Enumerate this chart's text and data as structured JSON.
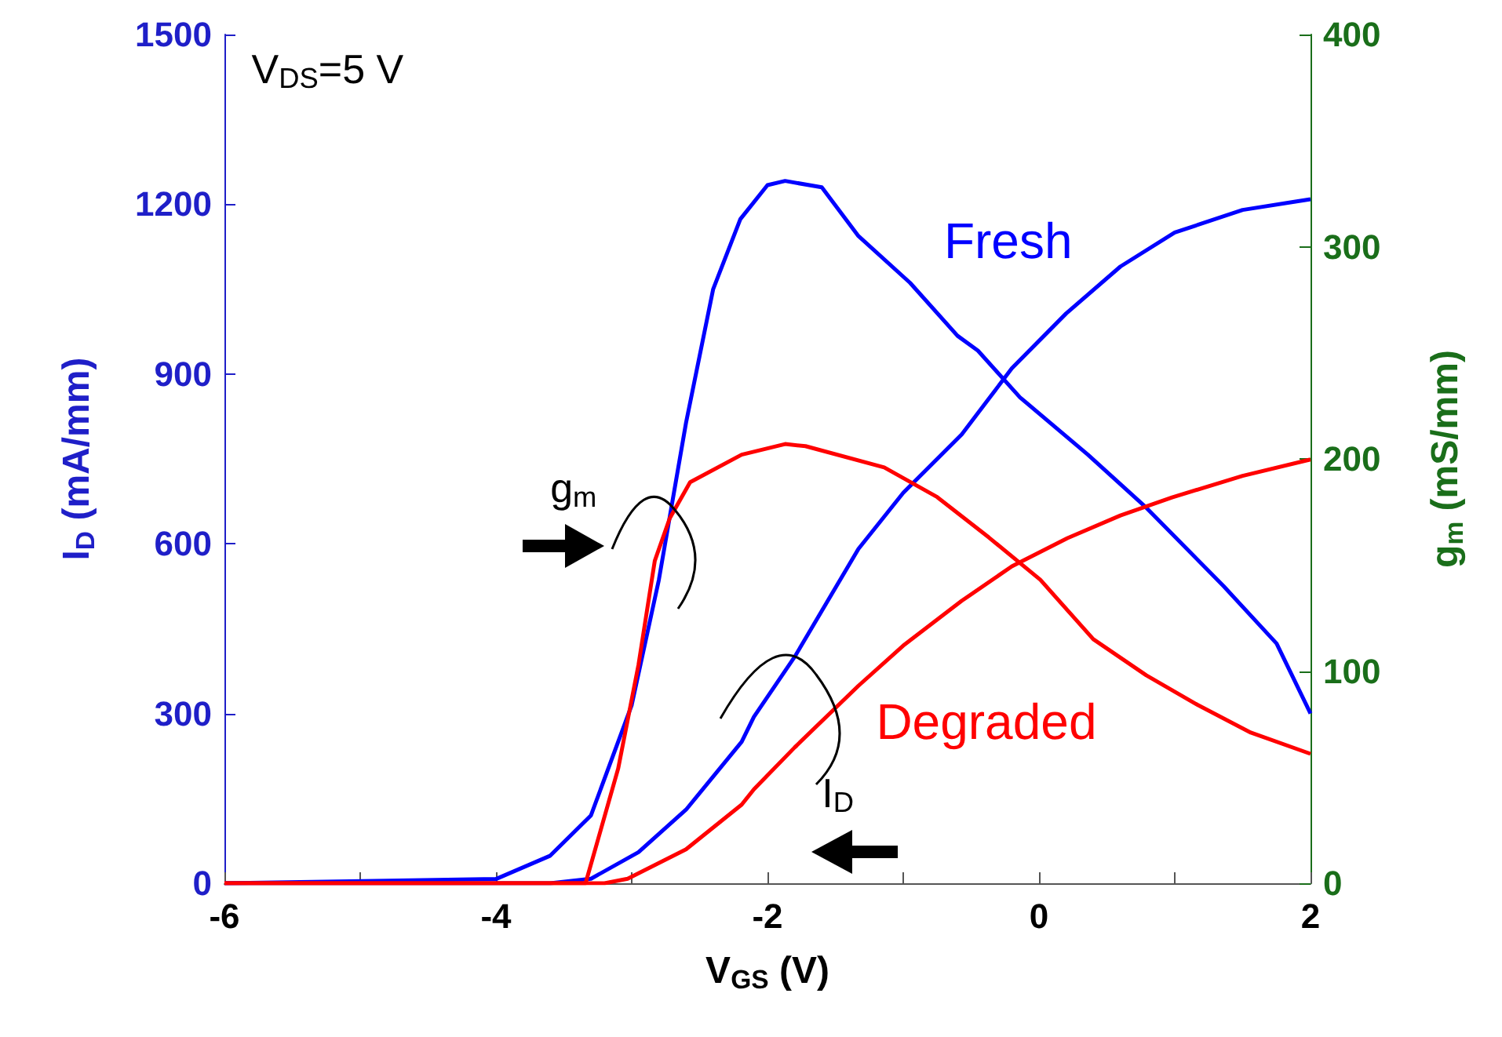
{
  "chart_data": {
    "type": "line",
    "xlabel": "V$_{GS}$ (V)",
    "ylabel": "I$_{D}$ (mA/mm)",
    "y2label": "g$_{m}$ (mS/mm)",
    "annotations": [
      "V$_{DS}$=5 V",
      "g$_{m}$",
      "I$_{D}$"
    ],
    "xlim": [
      -6,
      2
    ],
    "xticks": [
      -6,
      {
        "value": -5,
        "label": null
      },
      -4,
      {
        "value": -3,
        "label": null
      },
      -2,
      {
        "value": -1,
        "label": null
      },
      0,
      {
        "value": 1,
        "label": null
      },
      2
    ],
    "ylim": [
      0,
      1500
    ],
    "yticks": [
      0,
      300,
      600,
      900,
      1200,
      1500
    ],
    "y2lim": [
      0,
      400
    ],
    "y2ticks": [
      0,
      100,
      200,
      300,
      400
    ],
    "grid": false,
    "legend": false,
    "line_style": "solid",
    "marker": "none",
    "series": [
      {
        "name": "Fresh",
        "color": "#0000ff",
        "axis": "y2",
        "x": [
          -6,
          -4,
          -3.6,
          -3.3,
          -3.0,
          -2.8,
          -2.6,
          -2.4,
          -2.2,
          -2.0,
          -1.87,
          -1.6,
          -1.33,
          -0.95,
          -0.6,
          -0.45,
          -0.14,
          0.36,
          0.79,
          1.36,
          1.75,
          2
        ],
        "values": [
          0,
          2,
          13,
          32,
          84,
          143,
          217,
          280,
          313,
          329,
          331,
          328,
          305,
          283,
          258,
          251,
          229,
          202,
          177,
          140,
          113,
          80
        ]
      },
      {
        "color": "#0000ff",
        "x": [
          -6,
          -3.6,
          -3.3,
          -2.95,
          -2.6,
          -2.19,
          -2.1,
          -1.8,
          -1.33,
          -1,
          -0.57,
          -0.2,
          0.2,
          0.6,
          1,
          1.5,
          2
        ],
        "values": [
          0,
          0,
          8,
          55,
          130,
          250,
          294,
          400,
          591,
          690,
          793,
          910,
          1007,
          1090,
          1150,
          1190,
          1209
        ]
      },
      {
        "name": "Degraded",
        "color": "#ff0000",
        "axis": "y2",
        "x": [
          -6,
          -3.34,
          -3.1,
          -2.95,
          -2.83,
          -2.72,
          -2.57,
          -2.19,
          -1.87,
          -1.72,
          -1.14,
          -0.75,
          -0.37,
          0.01,
          0.4,
          0.79,
          1.17,
          1.56,
          2
        ],
        "values": [
          0,
          0,
          54,
          103,
          152,
          172,
          189,
          202,
          207,
          206,
          196,
          182,
          163,
          143,
          115,
          98,
          84,
          71,
          61
        ]
      },
      {
        "color": "#ff0000",
        "x": [
          -6,
          -3.2,
          -3.03,
          -2.6,
          -2.19,
          -2.1,
          -1.8,
          -1.33,
          -1,
          -0.57,
          -0.2,
          0.21,
          0.6,
          0.98,
          1.5,
          2
        ],
        "values": [
          0,
          0,
          8,
          60,
          139,
          166,
          240,
          349,
          420,
          499,
          560,
          610,
          650,
          682,
          720,
          749
        ]
      }
    ]
  }
}
